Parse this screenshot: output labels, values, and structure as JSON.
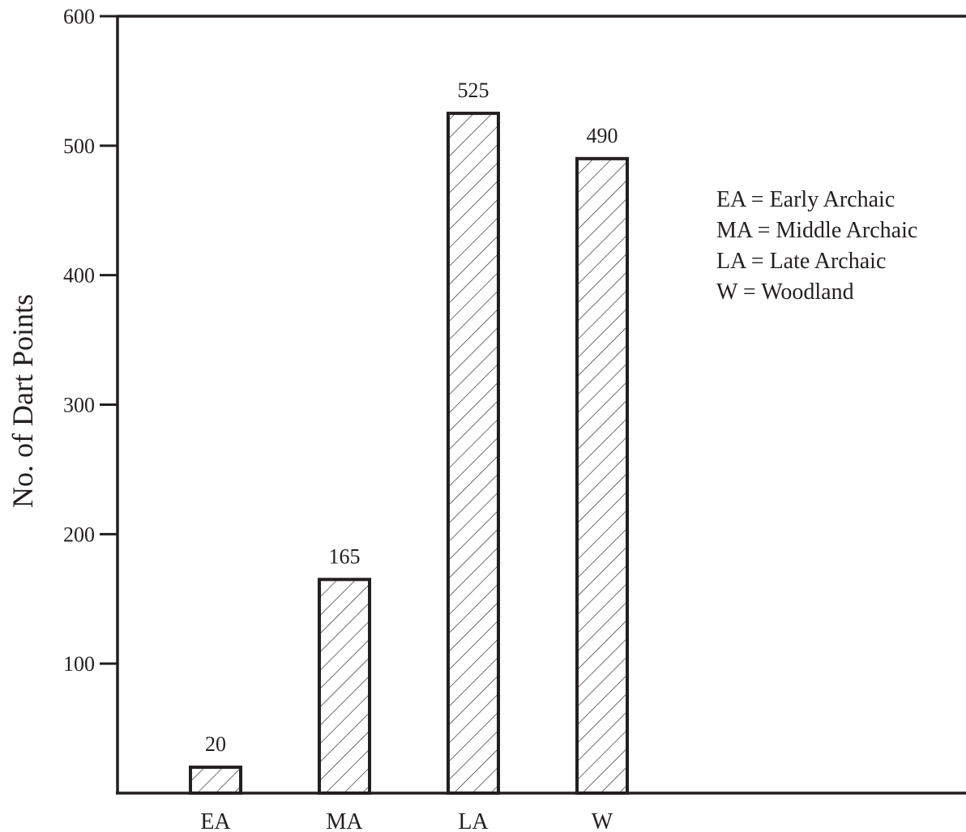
{
  "chart_data": {
    "type": "bar",
    "categories": [
      "EA",
      "MA",
      "LA",
      "W"
    ],
    "values": [
      20,
      165,
      525,
      490
    ],
    "data_labels": [
      "20",
      "165",
      "525",
      "490"
    ],
    "title": "",
    "xlabel": "",
    "ylabel": "No. of Dart Points",
    "ylim": [
      0,
      600
    ],
    "yticks": [
      100,
      200,
      300,
      400,
      500,
      600
    ],
    "grid": false,
    "bar_fill": "diagonal-hatch",
    "legend": {
      "placement": "right",
      "entries": [
        "EA = Early Archaic",
        "MA = Middle Archaic",
        "LA = Late Archaic",
        "W = Woodland"
      ]
    },
    "colors": {
      "ink": "#231f20",
      "background": "#ffffff"
    }
  }
}
